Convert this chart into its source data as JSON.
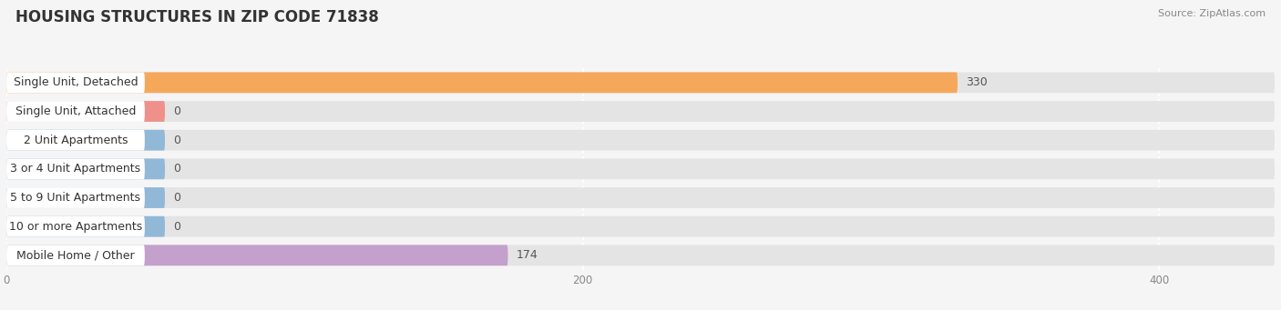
{
  "title": "HOUSING STRUCTURES IN ZIP CODE 71838",
  "source": "Source: ZipAtlas.com",
  "categories": [
    "Single Unit, Detached",
    "Single Unit, Attached",
    "2 Unit Apartments",
    "3 or 4 Unit Apartments",
    "5 to 9 Unit Apartments",
    "10 or more Apartments",
    "Mobile Home / Other"
  ],
  "values": [
    330,
    0,
    0,
    0,
    0,
    0,
    174
  ],
  "bar_colors": [
    "#F5A85A",
    "#F0908A",
    "#92B8D8",
    "#92B8D8",
    "#92B8D8",
    "#92B8D8",
    "#C4A0CC"
  ],
  "zero_stub_val": 55,
  "xlim": [
    0,
    440
  ],
  "xticks": [
    0,
    200,
    400
  ],
  "background_color": "#f5f5f5",
  "bar_bg_color": "#e4e4e4",
  "white_label_color": "#ffffff",
  "title_fontsize": 12,
  "source_fontsize": 8,
  "label_fontsize": 9,
  "value_fontsize": 9
}
